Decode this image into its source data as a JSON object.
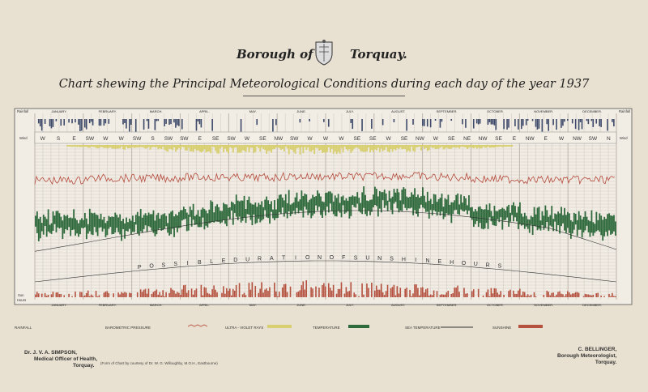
{
  "header": {
    "title_left": "Borough of",
    "title_right": "Torquay.",
    "subtitle": "Chart shewing the Principal Meteorological Conditions during each day of the year 1937",
    "crest_icon": "borough-crest-icon"
  },
  "months": [
    "JANUARY.",
    "FEBRUARY.",
    "MARCH.",
    "APRIL.",
    "MAY.",
    "JUNE.",
    "JULY.",
    "AUGUST.",
    "SEPTEMBER.",
    "OCTOBER.",
    "NOVEMBER.",
    "DECEMBER."
  ],
  "side_labels": {
    "rainfall": "Rainfall",
    "rainfall_right": "Rainfall",
    "wind": "Wind",
    "sun": "Sun",
    "hours": "Hours"
  },
  "wind_letters": [
    "W",
    "S",
    "E",
    "SW",
    "W",
    "W",
    "SW",
    "S",
    "SW",
    "SW",
    "E",
    "SE",
    "SW",
    "W",
    "SE",
    "NW",
    "SW",
    "W",
    "W",
    "W",
    "SE",
    "SE",
    "W",
    "SE",
    "NW",
    "W",
    "SE",
    "NE",
    "NW",
    "SE",
    "E",
    "NW",
    "E",
    "W",
    "NW",
    "SW",
    "N"
  ],
  "sunshine_curve_label": [
    "P",
    "O",
    "S",
    "S",
    "I",
    "B",
    "L",
    "E",
    "D",
    "U",
    "R",
    "A",
    "T",
    "I",
    "O",
    "N",
    "O",
    "F",
    "S",
    "U",
    "N",
    "S",
    "H",
    "I",
    "N",
    "E",
    "H",
    "O",
    "U",
    "R",
    "S"
  ],
  "legend": {
    "rainfall": "RAINFALL",
    "barometric": "BAROMETRIC PRESSURE",
    "ultra_violet": "ULTRA - VIOLET RAYS",
    "temperature": "TEMPERATURE",
    "sea_temperature": "SEA TEMPERATURE",
    "sunshine": "SUNSHINE"
  },
  "footer": {
    "left_name": "Dr. J. V. A. SIMPSON,",
    "left_role": "Medical Officer of Health,",
    "left_place": "Torquay.",
    "right_name": "C. BELLINGER,",
    "right_role": "Borough Meteorologist,",
    "right_place": "Torquay.",
    "note": "(Form of Chart by courtesy of Dr. W. G. Willoughby, M.O.H., Eastbourne)"
  },
  "colors": {
    "paper": "#e8e0d0",
    "chart_bg": "#f1ece4",
    "grid": "#b8b0a6",
    "rain": "#3d4a6a",
    "wind_band": "#f3efe7",
    "uv": "#d8cf70",
    "pressure": "#b64a3c",
    "temperature": "#2f6a3c",
    "sunshine": "#b5513f",
    "curve": "#333"
  },
  "chart_data": {
    "type": "bar",
    "x": "day of year 1937",
    "categories": [
      "JANUARY.",
      "FEBRUARY.",
      "MARCH.",
      "APRIL.",
      "MAY.",
      "JUNE.",
      "JULY.",
      "AUGUST.",
      "SEPTEMBER.",
      "OCTOBER.",
      "NOVEMBER.",
      "DECEMBER."
    ],
    "series": [
      {
        "name": "RAINFALL",
        "values": [
          0.45,
          0.5,
          0.35,
          0.2,
          0.15,
          0.1,
          0.2,
          0.15,
          0.25,
          0.4,
          0.45,
          0.4
        ]
      },
      {
        "name": "BAROMETRIC PRESSURE",
        "values": [
          0.48,
          0.55,
          0.55,
          0.58,
          0.57,
          0.6,
          0.6,
          0.62,
          0.58,
          0.52,
          0.5,
          0.5
        ]
      },
      {
        "name": "TEMPERATURE",
        "values": [
          0.28,
          0.27,
          0.3,
          0.4,
          0.5,
          0.58,
          0.62,
          0.65,
          0.55,
          0.42,
          0.33,
          0.28
        ]
      },
      {
        "name": "SUNSHINE",
        "values": [
          0.2,
          0.25,
          0.35,
          0.5,
          0.6,
          0.7,
          0.6,
          0.55,
          0.45,
          0.35,
          0.25,
          0.2
        ]
      }
    ],
    "legend_position": "bottom",
    "grid": true
  }
}
